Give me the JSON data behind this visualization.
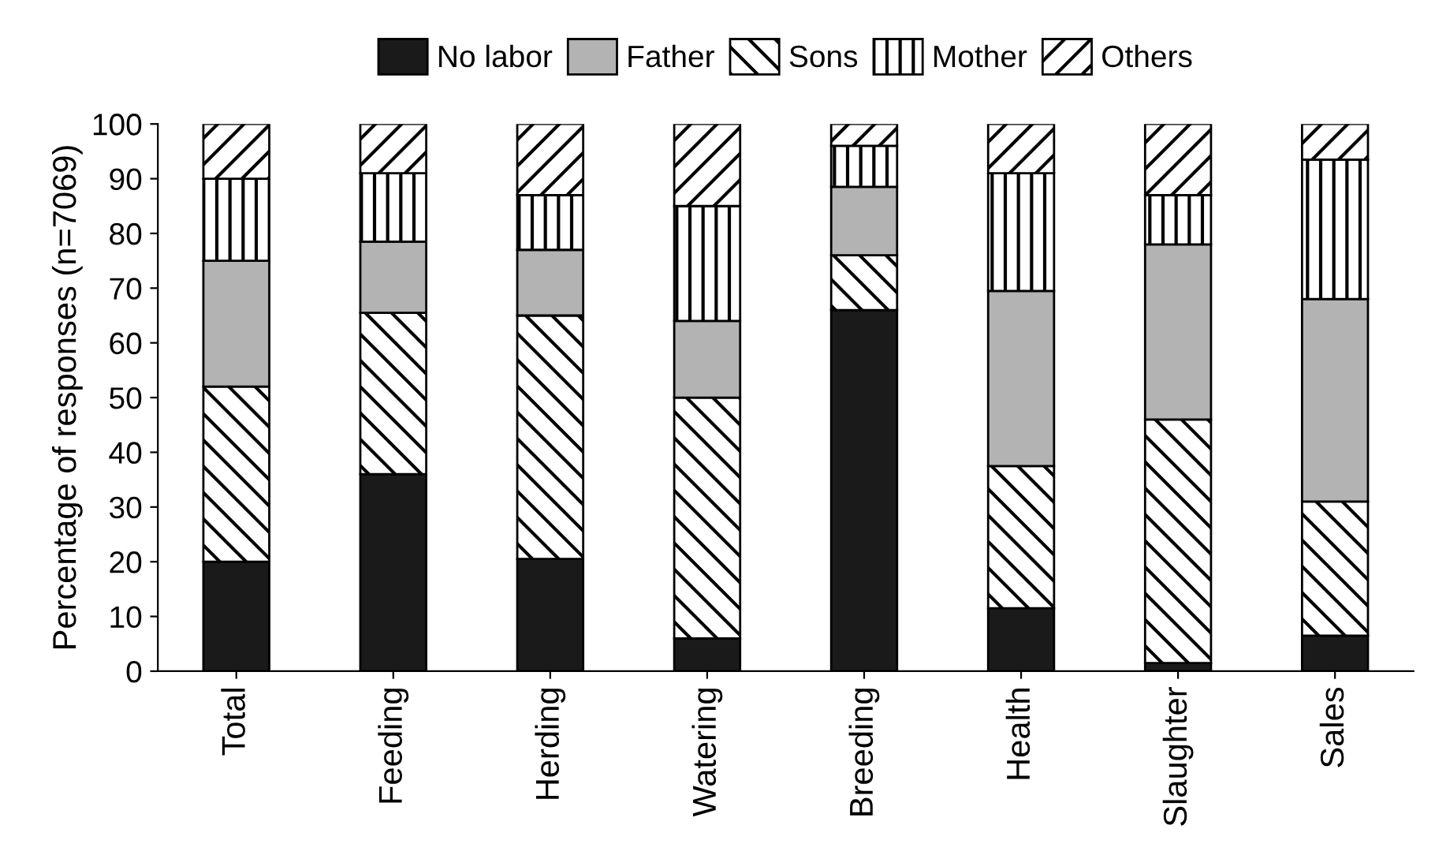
{
  "chart_data": {
    "type": "bar",
    "stacked": true,
    "ylabel": "Percentage of responses (n=7069)",
    "categories": [
      "Total",
      "Feeding",
      "Herding",
      "Watering",
      "Breeding",
      "Health",
      "Slaughter",
      "Sales"
    ],
    "series": [
      {
        "name": "No labor",
        "color": "#1a1a1a",
        "values": [
          20,
          36,
          20.5,
          6,
          66,
          11.5,
          1.5,
          6.5
        ]
      },
      {
        "name": "Sons",
        "color": "#000000",
        "values": [
          32,
          29.5,
          44.5,
          44,
          10,
          26,
          44.5,
          24.5
        ]
      },
      {
        "name": "Father",
        "color": "#b3b3b3",
        "values": [
          23,
          13,
          12,
          14,
          12.5,
          32,
          32,
          37
        ]
      },
      {
        "name": "Mother",
        "color": "#000000",
        "values": [
          15,
          12.5,
          10,
          21,
          7.5,
          21.5,
          9,
          25.5
        ]
      },
      {
        "name": "Others",
        "color": "#000000",
        "values": [
          10,
          9,
          13,
          15,
          4,
          9,
          13,
          6.5
        ]
      }
    ],
    "ylim": [
      0,
      100
    ],
    "yticks": [
      0,
      10,
      20,
      30,
      40,
      50,
      60,
      70,
      80,
      90,
      100
    ],
    "grid": false,
    "legend": "top"
  }
}
